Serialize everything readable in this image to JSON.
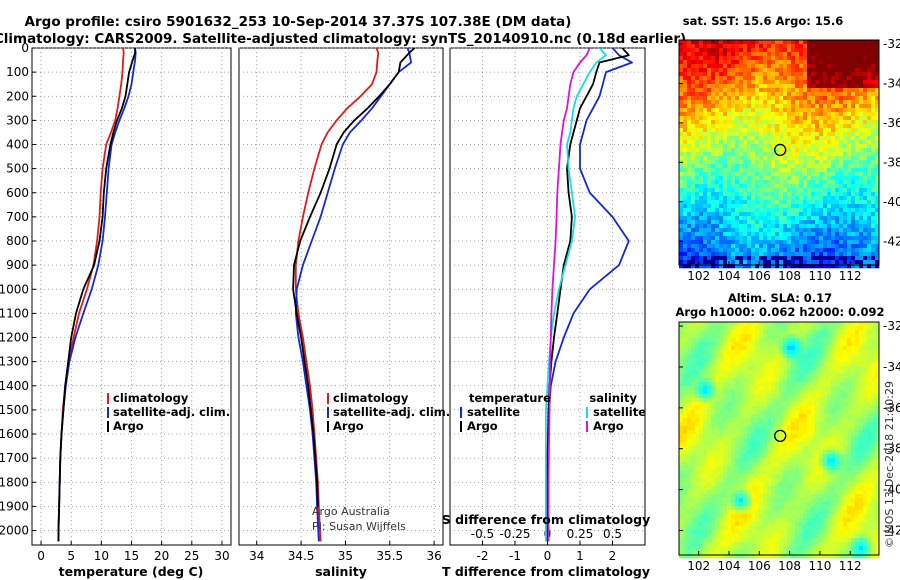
{
  "header": {
    "title_line1": "Argo profile: csiro 5901632_253 10-Sep-2014 37.37S 107.38E (DM data)",
    "title_line2": "Climatology: CARS2009. Satellite-adjusted climatology: synTS_20140910.nc (0.18d earlier)"
  },
  "colors": {
    "climatology": "#e21a1a",
    "satellite": "#1228d8",
    "argo": "#000000",
    "temp_satellite": "#1228d8",
    "sal_satellite": "#15e0e0",
    "sal_argo": "#e010e0"
  },
  "footer": {
    "credit_line1": "Argo Australia",
    "credit_line2": "PI: Susan Wijffels",
    "timestamp": "©IMOS 13-Dec-2018 21:40:29"
  },
  "chart_data": [
    {
      "type": "line",
      "panel": "temperature",
      "xlabel": "temperature (deg C)",
      "xlim": [
        -1.5,
        31.5
      ],
      "xticks": [
        "0",
        "5",
        "10",
        "15",
        "20",
        "25",
        "30"
      ],
      "ylim": [
        2060,
        0
      ],
      "yticks": [
        "0",
        "100",
        "200",
        "300",
        "400",
        "500",
        "600",
        "700",
        "800",
        "900",
        "1000",
        "1100",
        "1200",
        "1300",
        "1400",
        "1500",
        "1600",
        "1700",
        "1800",
        "1900",
        "2000"
      ],
      "y_inverted": true,
      "legend": {
        "placement": "lower-right",
        "entries": [
          "climatology",
          "satellite-adj. clim.",
          "Argo"
        ]
      },
      "series": [
        {
          "name": "climatology",
          "color_key": "climatology",
          "x": [
            13.6,
            13.7,
            13.6,
            13.5,
            13.3,
            13.0,
            12.7,
            12.3,
            11.6,
            10.8,
            10.2,
            9.9,
            9.7,
            9.3,
            8.7,
            7.6,
            6.3,
            5.4,
            4.6,
            4.0,
            3.6,
            3.4,
            3.2,
            3.1,
            3.0,
            2.9,
            2.9
          ],
          "y": [
            0,
            20,
            50,
            100,
            150,
            200,
            250,
            300,
            350,
            400,
            500,
            600,
            700,
            800,
            900,
            1000,
            1100,
            1200,
            1300,
            1400,
            1500,
            1600,
            1700,
            1800,
            1900,
            2000,
            2045
          ]
        },
        {
          "name": "satellite-adj. clim.",
          "color_key": "satellite",
          "x": [
            15.6,
            15.7,
            15.6,
            15.3,
            15.0,
            14.5,
            13.8,
            13.0,
            12.3,
            11.7,
            11.2,
            10.9,
            10.6,
            10.2,
            9.5,
            8.4,
            7.0,
            5.7,
            4.7,
            4.1,
            3.7,
            3.4,
            3.2,
            3.1,
            3.0,
            2.9,
            2.9
          ],
          "y": [
            0,
            20,
            50,
            100,
            150,
            200,
            250,
            300,
            350,
            400,
            500,
            600,
            700,
            800,
            900,
            1000,
            1100,
            1200,
            1300,
            1400,
            1500,
            1600,
            1700,
            1800,
            1900,
            2000,
            2045
          ]
        },
        {
          "name": "Argo",
          "color_key": "argo",
          "x": [
            15.6,
            15.6,
            15.2,
            14.6,
            14.3,
            14.0,
            13.4,
            12.6,
            12.0,
            11.5,
            10.8,
            10.4,
            10.2,
            9.7,
            8.8,
            7.0,
            5.8,
            5.0,
            4.5,
            4.0,
            3.7,
            3.4,
            3.2,
            3.1,
            3.0,
            2.9,
            2.9
          ],
          "y": [
            0,
            20,
            50,
            100,
            150,
            200,
            250,
            300,
            350,
            400,
            500,
            600,
            700,
            800,
            900,
            1000,
            1100,
            1200,
            1300,
            1400,
            1500,
            1600,
            1700,
            1800,
            1900,
            2000,
            2045
          ]
        }
      ]
    },
    {
      "type": "line",
      "panel": "salinity",
      "xlabel": "salinity",
      "xlim": [
        33.8,
        36.1
      ],
      "xticks": [
        "34",
        "34.5",
        "35",
        "35.5",
        "36"
      ],
      "ylim": [
        2060,
        0
      ],
      "y_inverted": true,
      "legend": {
        "placement": "lower-right",
        "entries": [
          "climatology",
          "satellite-adj. clim.",
          "Argo"
        ]
      },
      "series": [
        {
          "name": "climatology",
          "color_key": "climatology",
          "x": [
            35.35,
            35.37,
            35.36,
            35.35,
            35.3,
            35.17,
            35.02,
            34.9,
            34.8,
            34.73,
            34.65,
            34.58,
            34.52,
            34.47,
            34.44,
            34.44,
            34.47,
            34.52,
            34.56,
            34.6,
            34.63,
            34.65,
            34.67,
            34.69,
            34.7,
            34.72
          ],
          "y": [
            0,
            20,
            50,
            100,
            150,
            200,
            250,
            300,
            350,
            400,
            500,
            600,
            700,
            800,
            900,
            1000,
            1100,
            1200,
            1300,
            1400,
            1500,
            1600,
            1700,
            1800,
            1900,
            2045
          ]
        },
        {
          "name": "satellite-adj. clim.",
          "color_key": "satellite",
          "x": [
            35.7,
            35.72,
            35.74,
            35.6,
            35.5,
            35.4,
            35.3,
            35.18,
            35.05,
            34.97,
            34.88,
            34.8,
            34.72,
            34.62,
            34.52,
            34.45,
            34.44,
            34.47,
            34.52,
            34.56,
            34.6,
            34.63,
            34.65,
            34.67,
            34.68,
            34.7
          ],
          "y": [
            0,
            20,
            60,
            100,
            150,
            200,
            250,
            300,
            350,
            400,
            500,
            600,
            700,
            800,
            900,
            1000,
            1100,
            1200,
            1300,
            1400,
            1500,
            1600,
            1700,
            1800,
            1900,
            2045
          ]
        },
        {
          "name": "Argo",
          "color_key": "argo",
          "x": [
            35.78,
            35.72,
            35.62,
            35.6,
            35.5,
            35.38,
            35.25,
            35.1,
            34.98,
            34.9,
            34.82,
            34.72,
            34.6,
            34.49,
            34.42,
            34.41,
            34.45,
            34.5,
            34.54,
            34.58,
            34.61,
            34.64,
            34.66,
            34.68,
            34.69
          ],
          "y": [
            0,
            20,
            60,
            100,
            150,
            200,
            250,
            300,
            350,
            400,
            500,
            600,
            700,
            800,
            900,
            1000,
            1100,
            1200,
            1300,
            1400,
            1500,
            1600,
            1700,
            1800,
            1900
          ]
        }
      ]
    },
    {
      "type": "line",
      "panel": "difference",
      "xlabel": "T difference from climatology",
      "xlabel_top": "S difference from climatology",
      "xlim": [
        -3,
        3
      ],
      "xticks": [
        "-2",
        "-1",
        "0",
        "1",
        "2"
      ],
      "xticks_top": [
        "-0.5",
        "-0.25",
        "0",
        "0.25",
        "0.5"
      ],
      "ylim": [
        2060,
        0
      ],
      "y_inverted": true,
      "legend": {
        "placement": "lower",
        "groups": [
          {
            "title": "temperature",
            "entries": [
              "satellite",
              "Argo"
            ]
          },
          {
            "title": "salinity",
            "entries": [
              "satellite",
              "Argo"
            ]
          }
        ]
      },
      "series": [
        {
          "name": "satellite",
          "group": "temperature",
          "color_key": "temp_satellite",
          "x": [
            2.0,
            2.2,
            2.6,
            1.8,
            1.7,
            1.6,
            1.4,
            1.2,
            1.1,
            1.0,
            1.0,
            1.3,
            2.0,
            2.5,
            2.2,
            1.3,
            0.8,
            0.5,
            0.25,
            0.1,
            0.05,
            0.02,
            0.0,
            0.0,
            0.0,
            0.0
          ],
          "y": [
            0,
            30,
            60,
            100,
            150,
            200,
            250,
            300,
            350,
            400,
            500,
            600,
            700,
            800,
            900,
            1000,
            1100,
            1200,
            1300,
            1400,
            1500,
            1600,
            1700,
            1800,
            1900,
            2045
          ]
        },
        {
          "name": "Argo",
          "group": "temperature",
          "color_key": "argo",
          "x": [
            2.3,
            2.5,
            1.6,
            1.5,
            1.4,
            1.2,
            1.0,
            0.9,
            0.8,
            0.7,
            0.6,
            0.65,
            0.75,
            0.7,
            0.5,
            0.4,
            0.3,
            0.2,
            0.12,
            0.06,
            0.03,
            0.02,
            0.0,
            0.0,
            0.0,
            0.0
          ],
          "y": [
            0,
            30,
            60,
            100,
            150,
            200,
            250,
            300,
            350,
            400,
            500,
            600,
            700,
            800,
            900,
            1000,
            1100,
            1200,
            1300,
            1400,
            1500,
            1600,
            1700,
            1800,
            1900,
            2045
          ]
        },
        {
          "name": "satellite",
          "group": "salinity",
          "color_key": "sal_satellite",
          "x": [
            1.6,
            1.8,
            1.5,
            1.3,
            1.1,
            0.9,
            0.8,
            0.75,
            0.7,
            0.6,
            0.65,
            0.75,
            0.85,
            0.75,
            0.55,
            0.35,
            0.2,
            0.1,
            0.05,
            0.0,
            -0.05,
            -0.05,
            -0.05,
            -0.05,
            -0.05,
            -0.05
          ],
          "y": [
            0,
            30,
            60,
            100,
            150,
            200,
            250,
            300,
            350,
            400,
            500,
            600,
            700,
            800,
            900,
            1000,
            1100,
            1200,
            1300,
            1400,
            1500,
            1600,
            1700,
            1800,
            1900,
            2045
          ]
        },
        {
          "name": "Argo",
          "group": "salinity",
          "color_key": "sal_argo",
          "x": [
            1.3,
            1.2,
            1.0,
            0.8,
            0.7,
            0.65,
            0.6,
            0.5,
            0.45,
            0.4,
            0.35,
            0.3,
            0.28,
            0.25,
            0.2,
            0.15,
            0.12,
            0.1,
            0.08,
            0.07,
            0.06,
            0.05,
            0.04,
            0.03,
            0.03,
            0.03
          ],
          "y": [
            0,
            30,
            60,
            100,
            150,
            200,
            250,
            300,
            350,
            400,
            500,
            600,
            700,
            800,
            900,
            1000,
            1100,
            1200,
            1300,
            1400,
            1500,
            1600,
            1700,
            1800,
            1900,
            2045
          ]
        }
      ]
    },
    {
      "type": "heatmap",
      "panel": "sst_map",
      "title": "sat. SST: 15.6 Argo: 15.6",
      "xticks": [
        "102",
        "104",
        "106",
        "108",
        "110",
        "112"
      ],
      "yticks": [
        "-32",
        "-34",
        "-36",
        "-38",
        "-40",
        "-42"
      ],
      "xlim": [
        100.7,
        113.9
      ],
      "ylim": [
        -43.2,
        -31.8
      ],
      "marker": {
        "lon": 107.38,
        "lat": -37.37
      }
    },
    {
      "type": "heatmap",
      "panel": "sla_map",
      "title_line1": "Altim. SLA: 0.17",
      "title_line2": "Argo h1000: 0.062 h2000: 0.092",
      "xticks": [
        "102",
        "104",
        "106",
        "108",
        "110",
        "112"
      ],
      "yticks": [
        "-32",
        "-34",
        "-36",
        "-38",
        "-40",
        "-42"
      ],
      "xlim": [
        100.7,
        113.9
      ],
      "ylim": [
        -43.2,
        -31.8
      ],
      "marker": {
        "lon": 107.38,
        "lat": -37.37
      }
    }
  ]
}
